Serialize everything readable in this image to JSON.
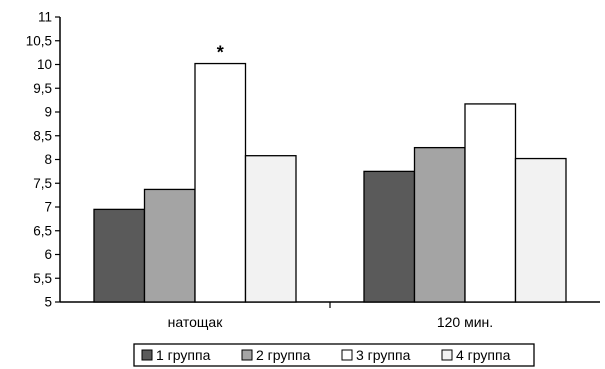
{
  "chart_data": {
    "type": "bar",
    "title": "",
    "xlabel": "",
    "ylabel": "",
    "categories": [
      "натощак",
      "120 мин."
    ],
    "series": [
      {
        "name": "1 группа",
        "values": [
          6.95,
          7.75
        ],
        "color": "#5a5a5a"
      },
      {
        "name": "2 группа",
        "values": [
          7.37,
          8.25
        ],
        "color": "#a4a4a4"
      },
      {
        "name": "3 группа",
        "values": [
          10.02,
          9.17
        ],
        "color": "#ffffff"
      },
      {
        "name": "4 группа",
        "values": [
          8.08,
          8.02
        ],
        "color": "#f2f2f2"
      }
    ],
    "ylim": [
      5,
      11
    ],
    "yticks": [
      "5",
      "5,5",
      "6",
      "6,5",
      "7",
      "7,5",
      "8",
      "8,5",
      "9",
      "9,5",
      "10",
      "10,5",
      "11"
    ],
    "annotations": [
      {
        "text": "*",
        "category": "натощак",
        "series": "3 группа"
      }
    ],
    "grid": false,
    "legend_position": "bottom"
  }
}
